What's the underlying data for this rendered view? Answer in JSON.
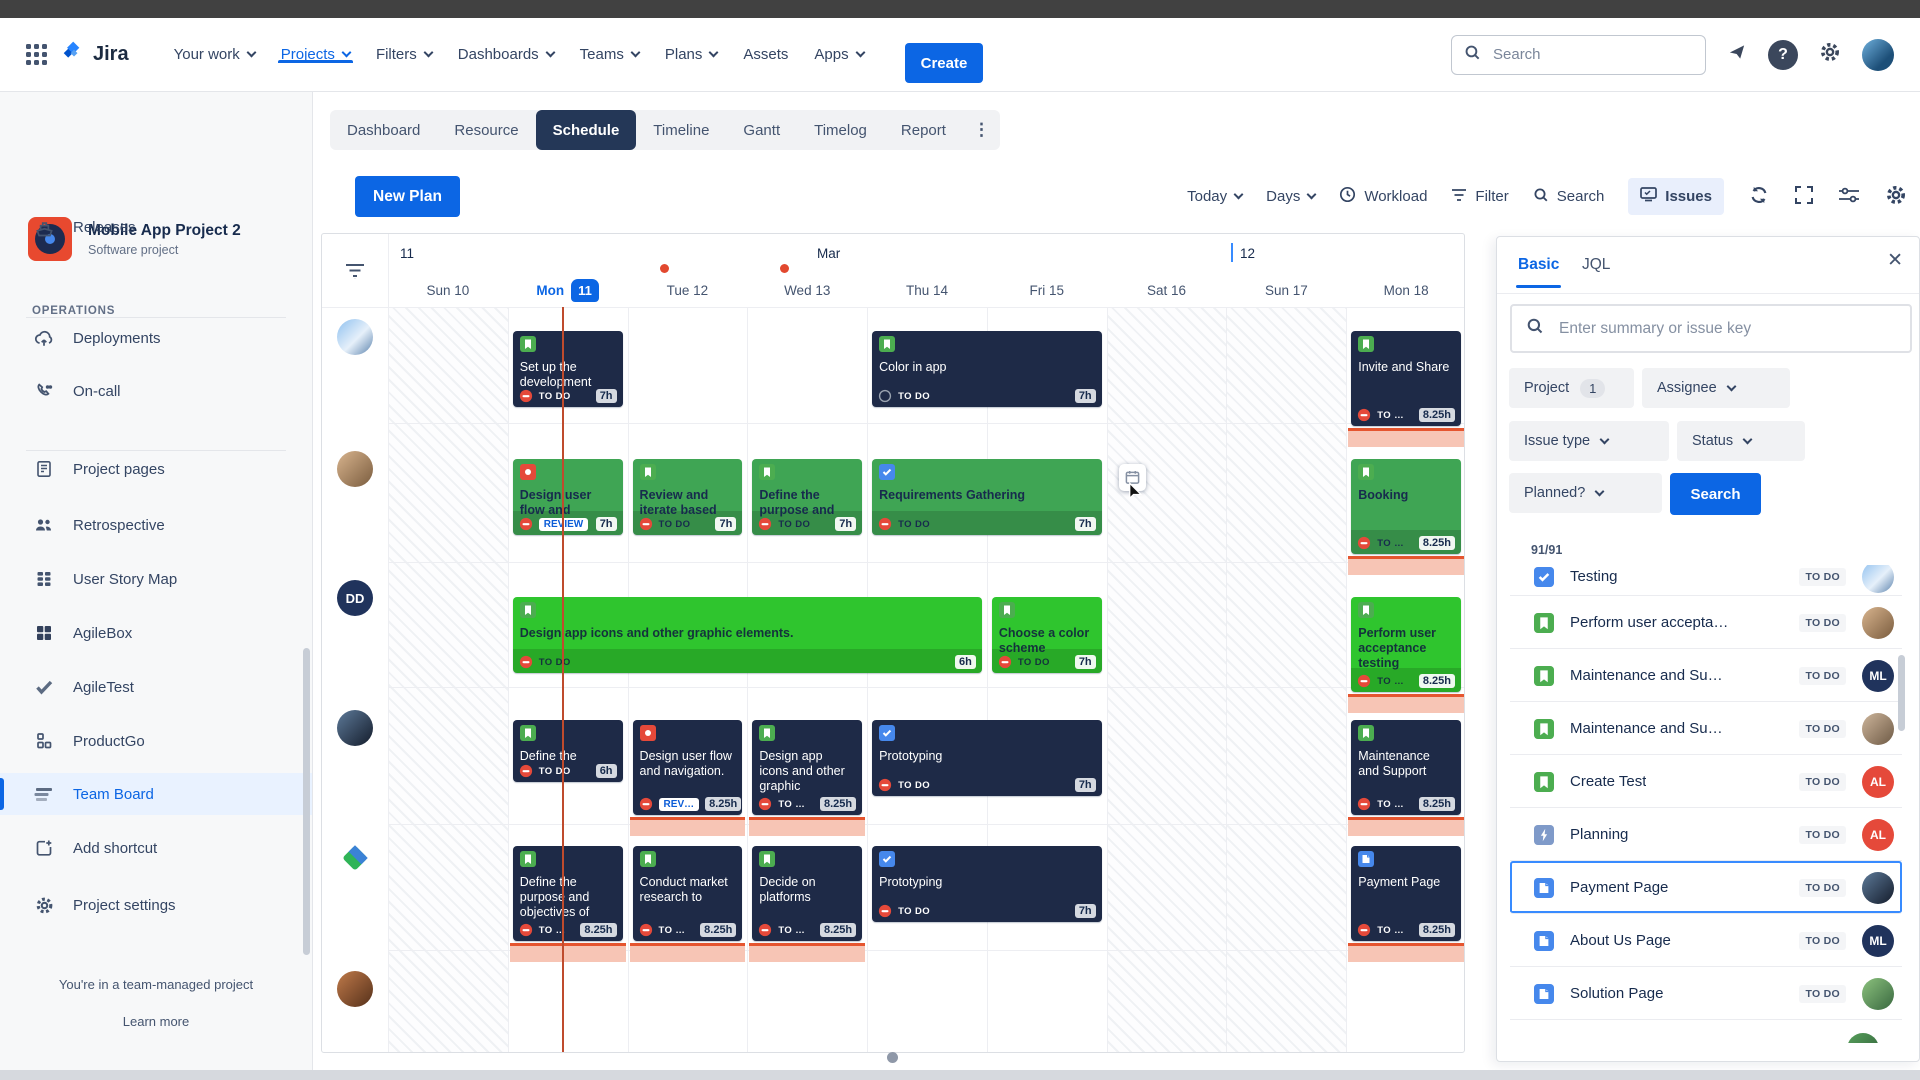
{
  "nav": {
    "logo": "Jira",
    "menu": [
      {
        "label": "Your work",
        "chevron": true
      },
      {
        "label": "Projects",
        "chevron": true,
        "active": true
      },
      {
        "label": "Filters",
        "chevron": true
      },
      {
        "label": "Dashboards",
        "chevron": true
      },
      {
        "label": "Teams",
        "chevron": true
      },
      {
        "label": "Plans",
        "chevron": true
      },
      {
        "label": "Assets",
        "chevron": false
      },
      {
        "label": "Apps",
        "chevron": true
      }
    ],
    "create_label": "Create",
    "search_placeholder": "Search",
    "icons": [
      "flag-icon",
      "help-icon",
      "settings-icon",
      "user-avatar"
    ]
  },
  "sidebar": {
    "project": {
      "name": "Mobile App Project 2",
      "type": "Software project"
    },
    "items": [
      {
        "label": "Releases",
        "icon": "ship"
      },
      {
        "section": "OPERATIONS"
      },
      {
        "label": "Deployments",
        "icon": "cloud"
      },
      {
        "label": "On-call",
        "icon": "phone"
      },
      {
        "divider": true
      },
      {
        "label": "Project pages",
        "icon": "doc"
      },
      {
        "label": "Retrospective",
        "icon": "people"
      },
      {
        "label": "User Story Map",
        "icon": "storymap"
      },
      {
        "label": "AgileBox",
        "icon": "agilebox"
      },
      {
        "label": "AgileTest",
        "icon": "check"
      },
      {
        "label": "ProductGo",
        "icon": "productgo"
      },
      {
        "label": "Team Board",
        "icon": "board",
        "active": true
      },
      {
        "label": "Add shortcut",
        "icon": "addshortcut"
      },
      {
        "label": "Project settings",
        "icon": "gear"
      }
    ],
    "footer_note": "You're in a team-managed project",
    "footer_link": "Learn more"
  },
  "tabs": {
    "items": [
      "Dashboard",
      "Resource",
      "Schedule",
      "Timeline",
      "Gantt",
      "Timelog",
      "Report"
    ],
    "active": "Schedule"
  },
  "toolbar": {
    "new_plan": "New Plan",
    "today": "Today",
    "days": "Days",
    "workload": "Workload",
    "filter": "Filter",
    "search": "Search",
    "issues": "Issues"
  },
  "calendar": {
    "week_number_left": "11",
    "month": "Mar",
    "week_number_right": "12",
    "days": [
      {
        "label": "Sun 10",
        "weekend": true
      },
      {
        "label": "Mon",
        "daynum": "11",
        "today": true
      },
      {
        "label": "Tue 12",
        "marker": true
      },
      {
        "label": "Wed 13",
        "marker": true
      },
      {
        "label": "Thu 14"
      },
      {
        "label": "Fri 15"
      },
      {
        "label": "Sat 16",
        "weekend": true
      },
      {
        "label": "Sun 17",
        "weekend": true
      },
      {
        "label": "Mon 18"
      }
    ],
    "row_avatars": [
      {
        "kind": "photo-sky"
      },
      {
        "kind": "photo-tan"
      },
      {
        "kind": "initials",
        "text": "DD"
      },
      {
        "kind": "photo-dark"
      },
      {
        "kind": "diamond"
      },
      {
        "kind": "photo-rust"
      }
    ],
    "cards": [
      {
        "row": 0,
        "col": 1,
        "span": 1,
        "size": "m",
        "color": "navy",
        "type": "story",
        "priority": "blocked",
        "title": "Set up the development",
        "status": "TO DO",
        "hours": "7h"
      },
      {
        "row": 0,
        "col": 4,
        "span": 2,
        "size": "m",
        "color": "navy",
        "type": "story",
        "priority": "none",
        "title": "Color in app",
        "status": "TO DO",
        "hours": "7h"
      },
      {
        "row": 0,
        "col": 8,
        "span": 1,
        "size": "t",
        "color": "navy",
        "type": "story",
        "priority": "blocked",
        "title": "Invite and Share",
        "status": "TO …",
        "hours": "8.25h",
        "overload": true
      },
      {
        "row": 1,
        "col": 1,
        "span": 1,
        "size": "m",
        "color": "green",
        "type": "bug",
        "priority": "blocked",
        "title": "Design user flow and",
        "status": "REVIEW",
        "status_style": "chip",
        "hours": "7h"
      },
      {
        "row": 1,
        "col": 2,
        "span": 1,
        "size": "m",
        "color": "green",
        "type": "story",
        "priority": "blocked",
        "title": "Review and iterate based",
        "status": "TO DO",
        "hours": "7h"
      },
      {
        "row": 1,
        "col": 3,
        "span": 1,
        "size": "m",
        "color": "green",
        "type": "story",
        "priority": "blocked",
        "title": "Define the purpose and",
        "status": "TO DO",
        "hours": "7h"
      },
      {
        "row": 1,
        "col": 4,
        "span": 2,
        "size": "m",
        "color": "green",
        "type": "task",
        "priority": "blocked",
        "title": "Requirements Gathering",
        "status": "TO DO",
        "hours": "7h"
      },
      {
        "row": 1,
        "col": 8,
        "span": 1,
        "size": "t",
        "color": "green",
        "type": "story",
        "priority": "blocked",
        "title": "Booking",
        "status": "TO …",
        "hours": "8.25h",
        "overload": true
      },
      {
        "row": 2,
        "col": 1,
        "span": 4,
        "size": "m",
        "color": "bright",
        "type": "story",
        "priority": "blocked",
        "title": "Design app icons and other graphic elements.",
        "status": "TO DO",
        "hours": "6h"
      },
      {
        "row": 2,
        "col": 5,
        "span": 1,
        "size": "m",
        "color": "bright",
        "type": "story",
        "priority": "blocked",
        "title": "Choose a color scheme",
        "status": "TO DO",
        "hours": "7h"
      },
      {
        "row": 2,
        "col": 8,
        "span": 1,
        "size": "t",
        "color": "bright",
        "type": "story",
        "priority": "blocked",
        "title": "Perform user acceptance testing",
        "status": "TO …",
        "hours": "8.25h",
        "overload": true
      },
      {
        "row": 3,
        "col": 1,
        "span": 1,
        "size": "s",
        "color": "navy",
        "type": "story",
        "priority": "blocked",
        "title": "Define the",
        "status": "TO DO",
        "hours": "6h"
      },
      {
        "row": 3,
        "col": 2,
        "span": 1,
        "size": "t",
        "color": "navy",
        "type": "bug",
        "priority": "blocked",
        "title": "Design user flow and navigation.",
        "status": "REV…",
        "status_style": "chip",
        "hours": "8.25h",
        "overload": true
      },
      {
        "row": 3,
        "col": 3,
        "span": 1,
        "size": "t",
        "color": "navy",
        "type": "story",
        "priority": "blocked",
        "title": "Design app icons and other graphic",
        "status": "TO …",
        "hours": "8.25h",
        "overload": true
      },
      {
        "row": 3,
        "col": 4,
        "span": 2,
        "size": "m",
        "color": "navy",
        "type": "task",
        "priority": "blocked",
        "title": "Prototyping",
        "status": "TO DO",
        "hours": "7h"
      },
      {
        "row": 3,
        "col": 8,
        "span": 1,
        "size": "t",
        "color": "navy",
        "type": "story",
        "priority": "blocked",
        "title": "Maintenance and Support",
        "status": "TO …",
        "hours": "8.25h",
        "overload": true
      },
      {
        "row": 4,
        "col": 1,
        "span": 1,
        "size": "t",
        "color": "navy",
        "type": "story",
        "priority": "blocked",
        "title": "Define the purpose and objectives of",
        "status": "TO …",
        "hours": "8.25h",
        "overload": true
      },
      {
        "row": 4,
        "col": 2,
        "span": 1,
        "size": "t",
        "color": "navy",
        "type": "story",
        "priority": "blocked",
        "title": "Conduct market research to",
        "status": "TO …",
        "hours": "8.25h",
        "overload": true
      },
      {
        "row": 4,
        "col": 3,
        "span": 1,
        "size": "t",
        "color": "navy",
        "type": "story",
        "priority": "blocked",
        "title": "Decide on platforms",
        "status": "TO …",
        "hours": "8.25h",
        "overload": true
      },
      {
        "row": 4,
        "col": 4,
        "span": 2,
        "size": "m",
        "color": "navy",
        "type": "task",
        "priority": "blocked",
        "title": "Prototyping",
        "status": "TO DO",
        "hours": "7h"
      },
      {
        "row": 4,
        "col": 8,
        "span": 1,
        "size": "t",
        "color": "navy",
        "type": "page",
        "priority": "blocked",
        "title": "Payment Page",
        "status": "TO …",
        "hours": "8.25h",
        "overload": true
      }
    ]
  },
  "panel": {
    "tabs": [
      {
        "label": "Basic",
        "active": true
      },
      {
        "label": "JQL"
      }
    ],
    "search_placeholder": "Enter summary or issue key",
    "filters": {
      "project_label": "Project",
      "project_count": "1",
      "assignee": "Assignee",
      "issue_type": "Issue type",
      "status": "Status",
      "planned": "Planned?",
      "search_button": "Search"
    },
    "result_count": "91/91",
    "issues": [
      {
        "title": "Testing",
        "type": "task",
        "status": "TO DO",
        "avatar": "photo-sky",
        "clipped": true
      },
      {
        "title": "Perform user accepta…",
        "type": "story",
        "status": "TO DO",
        "avatar": "photo-tan"
      },
      {
        "title": "Maintenance and Su…",
        "type": "story",
        "status": "TO DO",
        "avatar": "ML"
      },
      {
        "title": "Maintenance and Su…",
        "type": "story",
        "status": "TO DO",
        "avatar": "photo-tan2"
      },
      {
        "title": "Create Test",
        "type": "story",
        "status": "TO DO",
        "avatar": "AL"
      },
      {
        "title": "Planning",
        "type": "bolt",
        "status": "TO DO",
        "avatar": "AL"
      },
      {
        "title": "Payment Page",
        "type": "page",
        "status": "TO DO",
        "avatar": "photo-dark",
        "selected": true
      },
      {
        "title": "About Us Page",
        "type": "page",
        "status": "TO DO",
        "avatar": "ML"
      },
      {
        "title": "Solution Page",
        "type": "page",
        "status": "TO DO",
        "avatar": "photo-green"
      }
    ]
  },
  "colors": {
    "accent_blue": "#0C66E4",
    "navy_card": "#1E2A47",
    "green_card": "#3FA554",
    "bright_green_card": "#2FC52E",
    "overload_salmon": "#F7C5B5",
    "overload_line": "#E5552F",
    "today_line": "#BF4B2D",
    "priority_red": "#E5493A",
    "story_green": "#4CAD50",
    "task_blue": "#4688EC"
  }
}
